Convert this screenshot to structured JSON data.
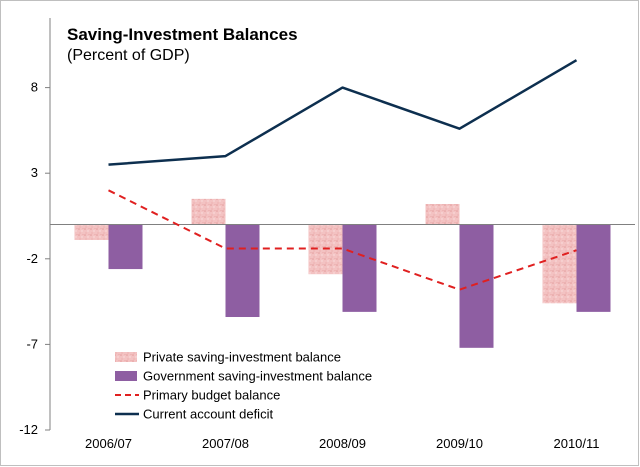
{
  "chart_data": {
    "type": "bar",
    "title": "Saving-Investment Balances",
    "subtitle": "(Percent of GDP)",
    "categories": [
      "2006/07",
      "2007/08",
      "2008/09",
      "2009/10",
      "2010/11"
    ],
    "ylim": [
      -12,
      13
    ],
    "yticks": [
      8,
      3,
      -2,
      -7,
      -12
    ],
    "grid": false,
    "legend_placement": "bottom-left",
    "series": [
      {
        "name": "Private saving-investment balance",
        "kind": "bar",
        "color": "#f2b8b8",
        "pattern": "mottled-pink",
        "values": [
          -0.9,
          1.5,
          -2.9,
          1.2,
          -4.6
        ]
      },
      {
        "name": "Government saving-investment balance",
        "kind": "bar",
        "color": "#8e5ea2",
        "values": [
          -2.6,
          -5.4,
          -5.1,
          -7.2,
          -5.1
        ]
      },
      {
        "name": "Primary budget balance",
        "kind": "line",
        "style": "dashed",
        "color": "#e02020",
        "values": [
          2.0,
          -1.4,
          -1.4,
          -3.8,
          -1.5
        ]
      },
      {
        "name": "Current account deficit",
        "kind": "line",
        "style": "solid",
        "color": "#0d2f4f",
        "values": [
          3.5,
          4.0,
          8.0,
          5.6,
          9.6
        ]
      }
    ]
  }
}
